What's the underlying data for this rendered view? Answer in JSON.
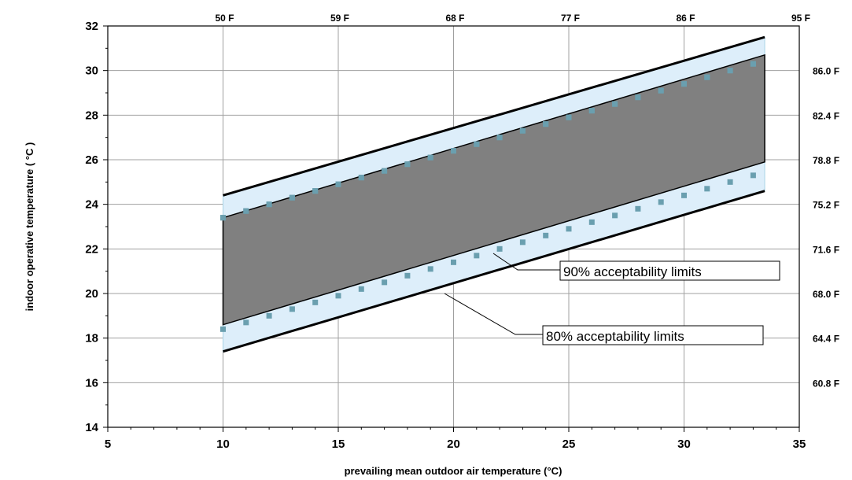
{
  "chart_data": {
    "type": "area",
    "xlabel": "prevailing mean outdoor air temperature (°C)",
    "ylabel": "indoor operative temperature  ( °C )",
    "xlim": [
      5,
      35
    ],
    "ylim": [
      14,
      32
    ],
    "x_ticks": [
      5,
      10,
      15,
      20,
      25,
      30,
      35
    ],
    "y_ticks": [
      14,
      16,
      18,
      20,
      22,
      24,
      26,
      28,
      30,
      32
    ],
    "top_axis_ticks": [
      {
        "x": 10,
        "label": "50 F"
      },
      {
        "x": 15,
        "label": "59 F"
      },
      {
        "x": 20,
        "label": "68 F"
      },
      {
        "x": 25,
        "label": "77 F"
      },
      {
        "x": 30,
        "label": "86 F"
      },
      {
        "x": 35,
        "label": "95 F"
      }
    ],
    "right_axis_ticks": [
      {
        "y": 30,
        "label": "86.0 F"
      },
      {
        "y": 28,
        "label": "82.4 F"
      },
      {
        "y": 26,
        "label": "78.8 F"
      },
      {
        "y": 24,
        "label": "75.2 F"
      },
      {
        "y": 22,
        "label": "71.6 F"
      },
      {
        "y": 20,
        "label": "68.0 F"
      },
      {
        "y": 18,
        "label": "64.4 F"
      },
      {
        "y": 16,
        "label": "60.8 F"
      }
    ],
    "grid": true,
    "bands": [
      {
        "name": "90% acceptability limits",
        "x": [
          10,
          33.5
        ],
        "upper": [
          23.4,
          30.7
        ],
        "lower": [
          18.6,
          25.9
        ],
        "color": "#808080"
      },
      {
        "name": "80% acceptability limits",
        "x": [
          10,
          33.5
        ],
        "upper": [
          24.4,
          31.5
        ],
        "lower": [
          17.4,
          24.6
        ],
        "color": "#ddeefa"
      }
    ],
    "marker_series": [
      {
        "x": [
          10,
          11,
          12,
          13,
          14,
          15,
          16,
          17,
          18,
          19,
          20,
          21,
          22,
          23,
          24,
          25,
          26,
          27,
          28,
          29,
          30,
          31,
          32,
          33
        ],
        "values": [
          23.4,
          23.7,
          24.0,
          24.3,
          24.6,
          24.9,
          25.2,
          25.5,
          25.8,
          26.1,
          26.4,
          26.7,
          27.0,
          27.3,
          27.6,
          27.9,
          28.2,
          28.5,
          28.8,
          29.1,
          29.4,
          29.7,
          30.0,
          30.3
        ]
      },
      {
        "x": [
          10,
          11,
          12,
          13,
          14,
          15,
          16,
          17,
          18,
          19,
          20,
          21,
          22,
          23,
          24,
          25,
          26,
          27,
          28,
          29,
          30,
          31,
          32,
          33
        ],
        "values": [
          18.4,
          18.7,
          19.0,
          19.3,
          19.6,
          19.9,
          20.2,
          20.5,
          20.8,
          21.1,
          21.4,
          21.7,
          22.0,
          22.3,
          22.6,
          22.9,
          23.2,
          23.5,
          23.8,
          24.1,
          24.4,
          24.7,
          25.0,
          25.3
        ]
      },
      {
        "x": [
          10,
          11,
          12,
          13,
          14,
          15,
          16,
          17,
          18,
          19,
          20,
          21,
          22,
          23,
          24,
          25,
          26,
          27,
          28,
          29,
          30,
          31,
          32,
          33
        ],
        "values": [
          23.4,
          23.7,
          24.0,
          24.3,
          24.6,
          24.9,
          25.2,
          25.5,
          25.8,
          26.1,
          26.4,
          26.7,
          27.0,
          27.3,
          27.6,
          27.9,
          28.2,
          28.5,
          28.8,
          29.1,
          29.4,
          29.7,
          30.0,
          30.3
        ]
      }
    ],
    "annotations": [
      {
        "text": "90% acceptability limits"
      },
      {
        "text": "80% acceptability limits"
      }
    ],
    "colors": {
      "band90": "#808080",
      "band80": "#ddeefa",
      "marker": "#6a9faf",
      "line": "#000000"
    }
  }
}
